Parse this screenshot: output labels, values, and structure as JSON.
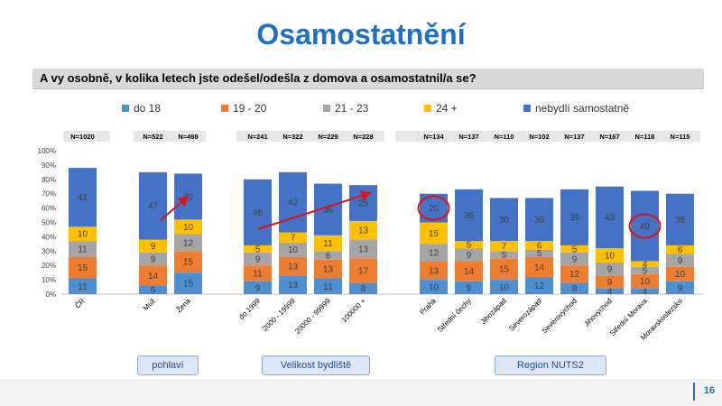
{
  "page": {
    "title": "Osamostatnění",
    "question": "A vy osobně, v kolika letech jste odešel/odešla z domova a osamostatnil/a se?",
    "page_number": "16"
  },
  "groups": [
    "pohlaví",
    "Velikost bydliště",
    "Region NUTS2"
  ],
  "colors": {
    "title": "#1f6fc5",
    "do 18": "#4e8fd0",
    "19 - 20": "#ed7d31",
    "21 - 23": "#a5a5a5",
    "24 +": "#ffc000",
    "nebydlí samostatně": "#4472c4",
    "highlight": "#d9141d"
  },
  "chart_data": {
    "type": "bar",
    "stacked": true,
    "percent_stacked": true,
    "ylim": [
      0,
      100
    ],
    "yticks": [
      "0%",
      "10%",
      "20%",
      "30%",
      "40%",
      "50%",
      "60%",
      "70%",
      "80%",
      "90%",
      "100%"
    ],
    "legend_position": "top",
    "categories": [
      "ČR",
      "Muž",
      "Žena",
      "do 1999",
      "2000 - 19999",
      "20000 - 99999",
      "100000 +",
      "Praha",
      "Střední čechy",
      "Jihozápad",
      "Severozápad",
      "Severovýchod",
      "Jihovýchod",
      "Střední Morava",
      "Moravskoslezsko"
    ],
    "n_labels": [
      "N=1020",
      "N=522",
      "N=498",
      "N=241",
      "N=322",
      "N=229",
      "N=228",
      "N=134",
      "N=137",
      "N=110",
      "N=102",
      "N=137",
      "N=167",
      "N=118",
      "N=115"
    ],
    "series": [
      {
        "name": "do 18",
        "values": [
          11,
          6,
          15,
          9,
          13,
          11,
          8,
          10,
          9,
          10,
          12,
          8,
          4,
          4,
          9
        ]
      },
      {
        "name": "19 - 20",
        "values": [
          15,
          14,
          15,
          11,
          13,
          13,
          17,
          13,
          14,
          15,
          14,
          12,
          9,
          10,
          10
        ]
      },
      {
        "name": "21 - 23",
        "values": [
          11,
          9,
          12,
          9,
          10,
          6,
          13,
          12,
          9,
          5,
          5,
          9,
          9,
          5,
          9
        ]
      },
      {
        "name": "24 +",
        "values": [
          10,
          9,
          10,
          5,
          7,
          11,
          13,
          15,
          5,
          7,
          6,
          5,
          10,
          4,
          6
        ]
      },
      {
        "name": "nebydlí samostatně",
        "values": [
          41,
          47,
          32,
          46,
          42,
          36,
          25,
          20,
          36,
          30,
          30,
          39,
          43,
          49,
          36
        ]
      }
    ],
    "highlighted": [
      {
        "category": "Praha",
        "series": "nebydlí samostatně"
      },
      {
        "category": "Střední Morava",
        "series": "nebydlí samostatně"
      }
    ]
  }
}
